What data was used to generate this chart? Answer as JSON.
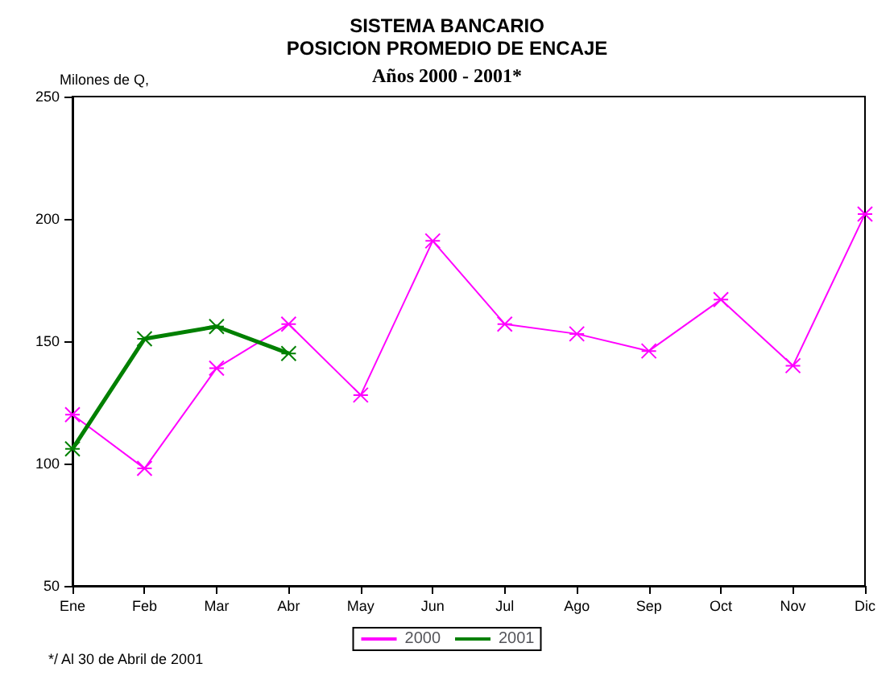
{
  "chart_data": {
    "type": "line",
    "title": "SISTEMA BANCARIO\nPOSICION PROMEDIO DE ENCAJE",
    "subtitle": "Años 2000 - 2001*",
    "ylabel": "Milones de Q,",
    "categories": [
      "Ene",
      "Feb",
      "Mar",
      "Abr",
      "May",
      "Jun",
      "Jul",
      "Ago",
      "Sep",
      "Oct",
      "Nov",
      "Dic"
    ],
    "series": [
      {
        "name": "2000",
        "color": "#ff00ff",
        "values": [
          120,
          98,
          139,
          157,
          128,
          191,
          157,
          153,
          146,
          167,
          140,
          202
        ]
      },
      {
        "name": "2001",
        "color": "#008000",
        "values": [
          106,
          151,
          156,
          145,
          null,
          null,
          null,
          null,
          null,
          null,
          null,
          null
        ]
      }
    ],
    "ylim": [
      50,
      250
    ],
    "yticks": [
      50,
      100,
      150,
      200,
      250
    ],
    "grid": false,
    "legend": "bottom",
    "marker": "cross",
    "annotations": [
      "*/ Al 30 de Abril de 2001"
    ]
  }
}
